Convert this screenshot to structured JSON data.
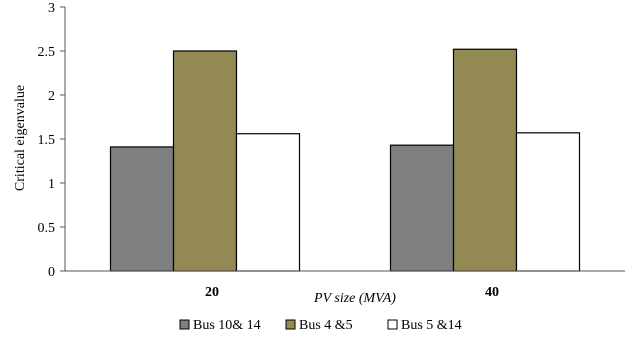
{
  "chart_data": {
    "type": "bar",
    "categories": [
      "20",
      "40"
    ],
    "series": [
      {
        "name": "Bus 10& 14",
        "values": [
          1.41,
          1.43
        ],
        "color": "#7f7f7f"
      },
      {
        "name": "Bus 4 &5",
        "values": [
          2.5,
          2.52
        ],
        "color": "#938953"
      },
      {
        "name": "Bus 5 &14",
        "values": [
          1.56,
          1.57
        ],
        "color": "#ffffff"
      }
    ],
    "xlabel": "PV size (MVA)",
    "ylabel": "Critical eigenvalue",
    "ylim": [
      0,
      3
    ],
    "yticks": [
      "0",
      "0.5",
      "1",
      "1.5",
      "2",
      "2.5",
      "3"
    ],
    "legend_position": "bottom",
    "grid": false
  }
}
